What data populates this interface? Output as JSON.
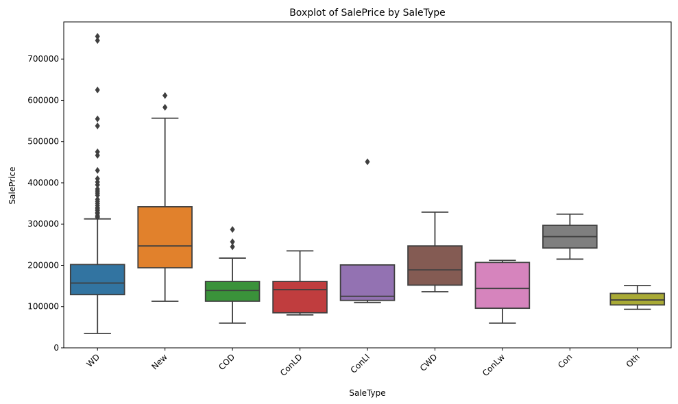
{
  "chart_data": {
    "type": "box",
    "title": "Boxplot of SalePrice by SaleType",
    "xlabel": "SaleType",
    "ylabel": "SalePrice",
    "ylim": [
      0,
      790000
    ],
    "yticks": [
      0,
      100000,
      200000,
      300000,
      400000,
      500000,
      600000,
      700000
    ],
    "grid": false,
    "categories": [
      "WD",
      "New",
      "COD",
      "ConLD",
      "ConLI",
      "CWD",
      "ConLw",
      "Con",
      "Oth"
    ],
    "boxes": [
      {
        "category": "WD",
        "color": "#3274a1",
        "whisker_low": 34900,
        "q1": 129000,
        "median": 157000,
        "q3": 202000,
        "whisker_high": 312500,
        "outliers": [
          316600,
          319000,
          320000,
          325000,
          328000,
          333000,
          337000,
          340000,
          345000,
          350000,
          355000,
          360000,
          370000,
          375000,
          380000,
          385000,
          395000,
          402000,
          410000,
          430000,
          466500,
          475000,
          538000,
          555000,
          625000,
          745000,
          755000
        ]
      },
      {
        "category": "New",
        "color": "#e1812c",
        "whisker_low": 113000,
        "q1": 194000,
        "median": 247000,
        "q3": 342000,
        "whisker_high": 556581,
        "outliers": [
          582933,
          611657
        ]
      },
      {
        "category": "COD",
        "color": "#3a923a",
        "whisker_low": 60000,
        "q1": 113000,
        "median": 139000,
        "q3": 161000,
        "whisker_high": 217500,
        "outliers": [
          245000,
          257000,
          287000
        ]
      },
      {
        "category": "ConLD",
        "color": "#c03d3e",
        "whisker_low": 79900,
        "q1": 85000,
        "median": 141000,
        "q3": 161000,
        "whisker_high": 235000,
        "outliers": []
      },
      {
        "category": "ConLI",
        "color": "#9372b2",
        "whisker_low": 110000,
        "q1": 115000,
        "median": 125000,
        "q3": 201000,
        "whisker_high": 201000,
        "outliers": [
          451000
        ]
      },
      {
        "category": "CWD",
        "color": "#845b53",
        "whisker_low": 136000,
        "q1": 152000,
        "median": 189000,
        "q3": 247000,
        "whisker_high": 328900,
        "outliers": []
      },
      {
        "category": "ConLw",
        "color": "#d684bd",
        "whisker_low": 60000,
        "q1": 96000,
        "median": 144000,
        "q3": 207000,
        "whisker_high": 212000,
        "outliers": []
      },
      {
        "category": "Con",
        "color": "#7f7f7f",
        "whisker_low": 215000,
        "q1": 242000,
        "median": 269600,
        "q3": 297000,
        "whisker_high": 324000,
        "outliers": []
      },
      {
        "category": "Oth",
        "color": "#a9aa35",
        "whisker_low": 93500,
        "q1": 104000,
        "median": 116050,
        "q3": 132000,
        "whisker_high": 151000,
        "outliers": []
      }
    ]
  }
}
